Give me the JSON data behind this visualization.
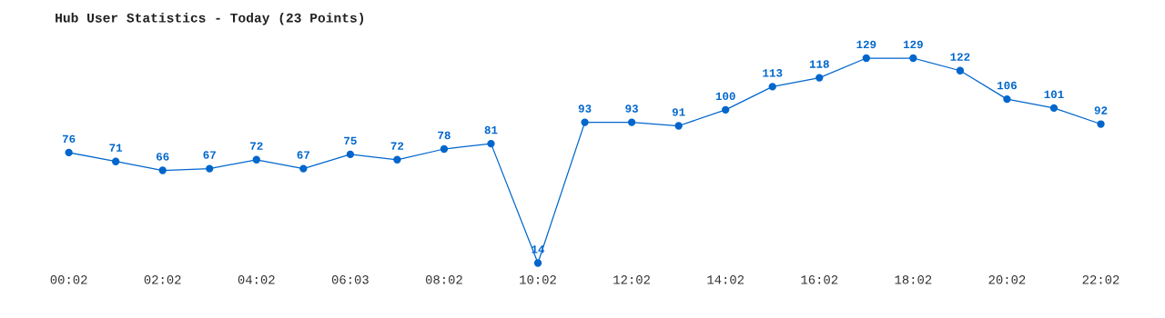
{
  "chart_data": {
    "type": "line",
    "title": "Hub User Statistics - Today (23 Points)",
    "categories": [
      "00:02",
      null,
      "02:02",
      null,
      "04:02",
      null,
      "06:03",
      null,
      "08:02",
      null,
      "10:02",
      null,
      "12:02",
      null,
      "14:02",
      null,
      "16:02",
      null,
      "18:02",
      null,
      "20:02",
      null,
      "22:02"
    ],
    "series": [
      {
        "color": "#0066cc",
        "values": [
          76,
          71,
          66,
          67,
          72,
          67,
          75,
          72,
          78,
          81,
          14,
          93,
          93,
          91,
          100,
          113,
          118,
          129,
          129,
          122,
          106,
          101,
          92
        ]
      }
    ],
    "data_labels": true,
    "marker": "circle",
    "grid": false,
    "legend": false
  }
}
